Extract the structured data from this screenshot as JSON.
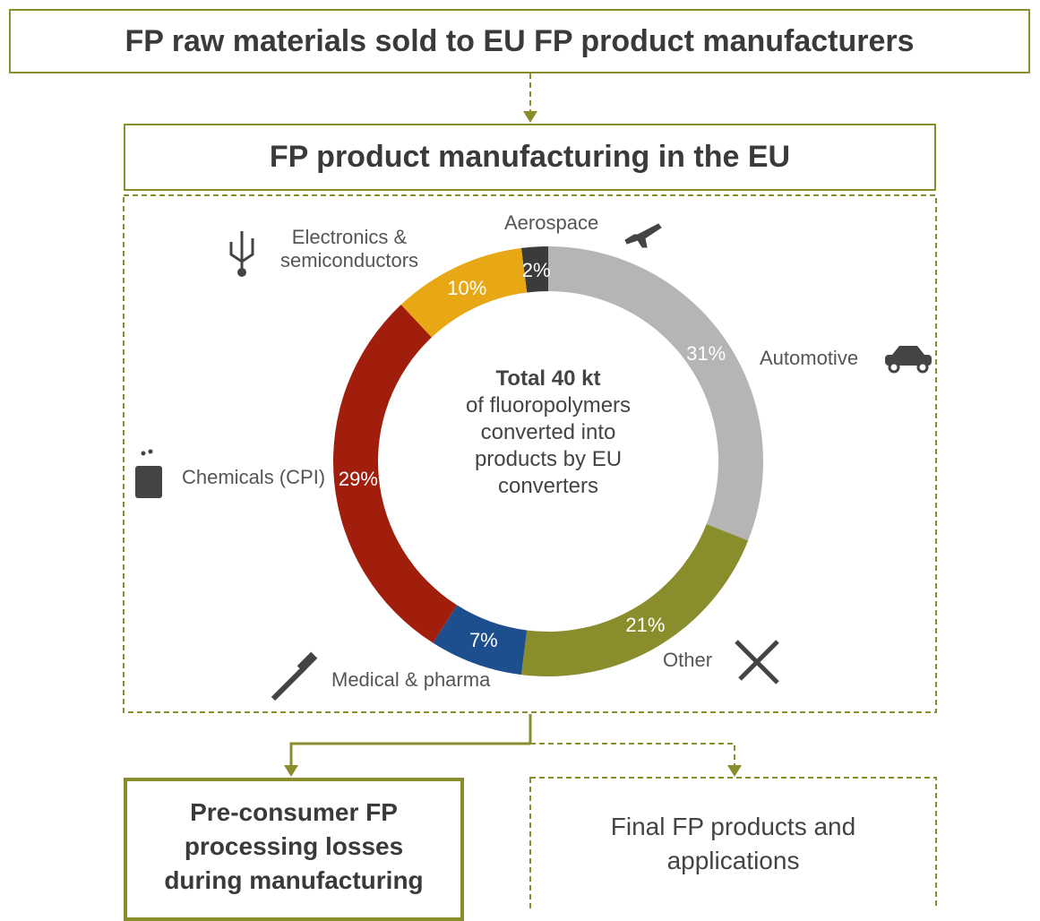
{
  "header": {
    "title": "FP raw materials sold to EU FP product manufacturers"
  },
  "stage": {
    "title": "FP product manufacturing in the EU"
  },
  "chart_data": {
    "type": "donut",
    "center_title": "Total 40 kt",
    "center_text": "of fluoropolymers converted into products by EU converters",
    "categories": [
      "Aerospace",
      "Automotive",
      "Other",
      "Medical & pharma",
      "Chemicals (CPI)",
      "Electronics & semiconductors"
    ],
    "values": [
      2,
      31,
      21,
      7,
      29,
      10
    ],
    "value_labels": [
      "2%",
      "31%",
      "21%",
      "7%",
      "29%",
      "10%"
    ],
    "colors": [
      "#3b3b3b",
      "#b5b5b5",
      "#8a8d2c",
      "#1d4f8e",
      "#a21e0c",
      "#e8a815"
    ]
  },
  "outputs": {
    "losses": "Pre-consumer FP processing losses during manufacturing",
    "products": "Final FP products and applications"
  }
}
